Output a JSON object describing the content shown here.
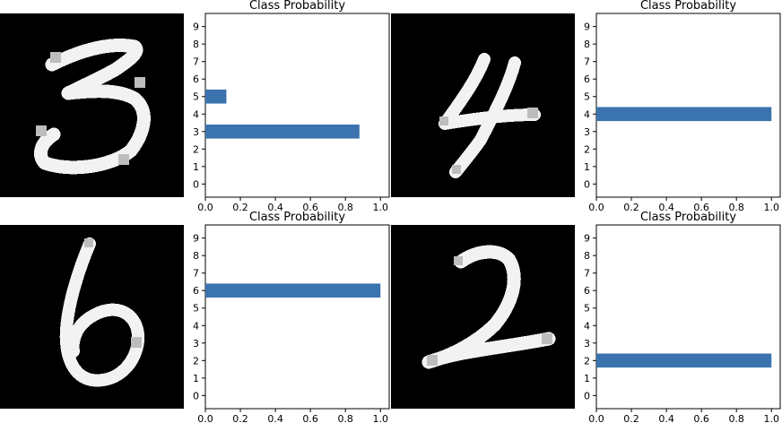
{
  "chart_data": [
    {
      "type": "bar",
      "orientation": "horizontal",
      "title": "Class Probability",
      "digit_image": "handwritten-3",
      "categories": [
        "0",
        "1",
        "2",
        "3",
        "4",
        "5",
        "6",
        "7",
        "8",
        "9"
      ],
      "values": [
        0,
        0,
        0,
        0.88,
        0,
        0.12,
        0,
        0,
        0,
        0
      ],
      "xlim": [
        0,
        1.05
      ],
      "xticks": [
        "0.0",
        "0.2",
        "0.4",
        "0.6",
        "0.8",
        "1.0"
      ],
      "grid": false,
      "bar_color": "#3b73ae"
    },
    {
      "type": "bar",
      "orientation": "horizontal",
      "title": "Class Probability",
      "digit_image": "handwritten-4",
      "categories": [
        "0",
        "1",
        "2",
        "3",
        "4",
        "5",
        "6",
        "7",
        "8",
        "9"
      ],
      "values": [
        0,
        0,
        0,
        0,
        1.0,
        0,
        0,
        0,
        0,
        0
      ],
      "xlim": [
        0,
        1.05
      ],
      "xticks": [
        "0.0",
        "0.2",
        "0.4",
        "0.6",
        "0.8",
        "1.0"
      ],
      "grid": false,
      "bar_color": "#3b73ae"
    },
    {
      "type": "bar",
      "orientation": "horizontal",
      "title": "Class Probability",
      "digit_image": "handwritten-6",
      "categories": [
        "0",
        "1",
        "2",
        "3",
        "4",
        "5",
        "6",
        "7",
        "8",
        "9"
      ],
      "values": [
        0,
        0,
        0,
        0,
        0,
        0,
        1.0,
        0,
        0,
        0
      ],
      "xlim": [
        0,
        1.05
      ],
      "xticks": [
        "0.0",
        "0.2",
        "0.4",
        "0.6",
        "0.8",
        "1.0"
      ],
      "grid": false,
      "bar_color": "#3b73ae"
    },
    {
      "type": "bar",
      "orientation": "horizontal",
      "title": "Class Probability",
      "digit_image": "handwritten-2",
      "categories": [
        "0",
        "1",
        "2",
        "3",
        "4",
        "5",
        "6",
        "7",
        "8",
        "9"
      ],
      "values": [
        0,
        0,
        1.0,
        0,
        0,
        0,
        0,
        0,
        0,
        0
      ],
      "xlim": [
        0,
        1.05
      ],
      "xticks": [
        "0.0",
        "0.2",
        "0.4",
        "0.6",
        "0.8",
        "1.0"
      ],
      "grid": false,
      "bar_color": "#3b73ae"
    }
  ]
}
